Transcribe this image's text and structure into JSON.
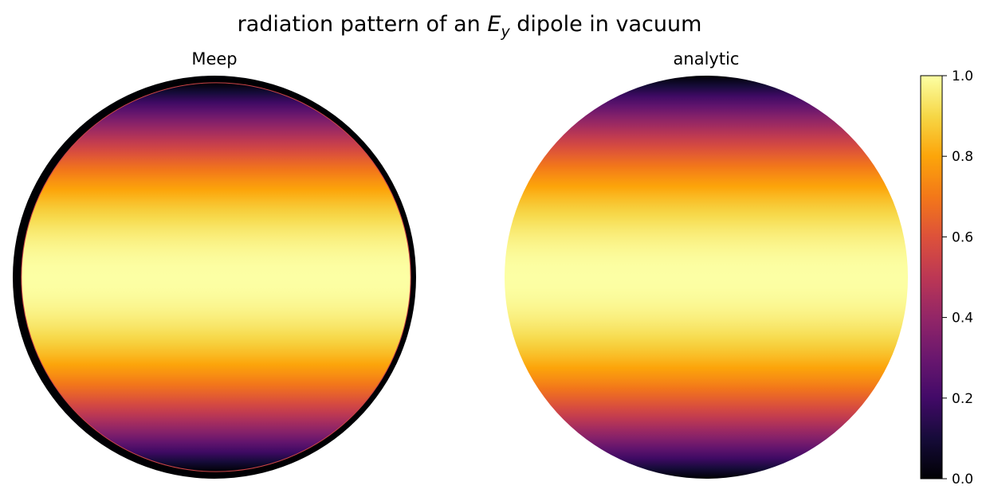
{
  "chart_data": {
    "type": "heatmap",
    "title": {
      "prefix": "radiation pattern of an ",
      "symbol": "E",
      "subscript": "y",
      "suffix": " dipole in vacuum"
    },
    "colormap": "inferno",
    "colorbar": {
      "range": [
        0.0,
        1.0
      ],
      "ticks": [
        {
          "value": 0.0,
          "label": "0.0"
        },
        {
          "value": 0.2,
          "label": "0.2"
        },
        {
          "value": 0.4,
          "label": "0.4"
        },
        {
          "value": 0.6,
          "label": "0.6"
        },
        {
          "value": 0.8,
          "label": "0.8"
        },
        {
          "value": 1.0,
          "label": "1.0"
        }
      ]
    },
    "panels": [
      {
        "title": "Meep",
        "projection": "polar",
        "radial_range": [
          0.0,
          1.0
        ],
        "value_law": "1 - (y/r)^2",
        "edge_value": 0.0,
        "edge_fraction": 0.035,
        "gridlines": false
      },
      {
        "title": "analytic",
        "projection": "polar",
        "radial_range": [
          0.0,
          1.0
        ],
        "value_law": "1 - (y/r)^2",
        "edge_value": null,
        "edge_fraction": 0.0,
        "gridlines": false
      }
    ]
  }
}
